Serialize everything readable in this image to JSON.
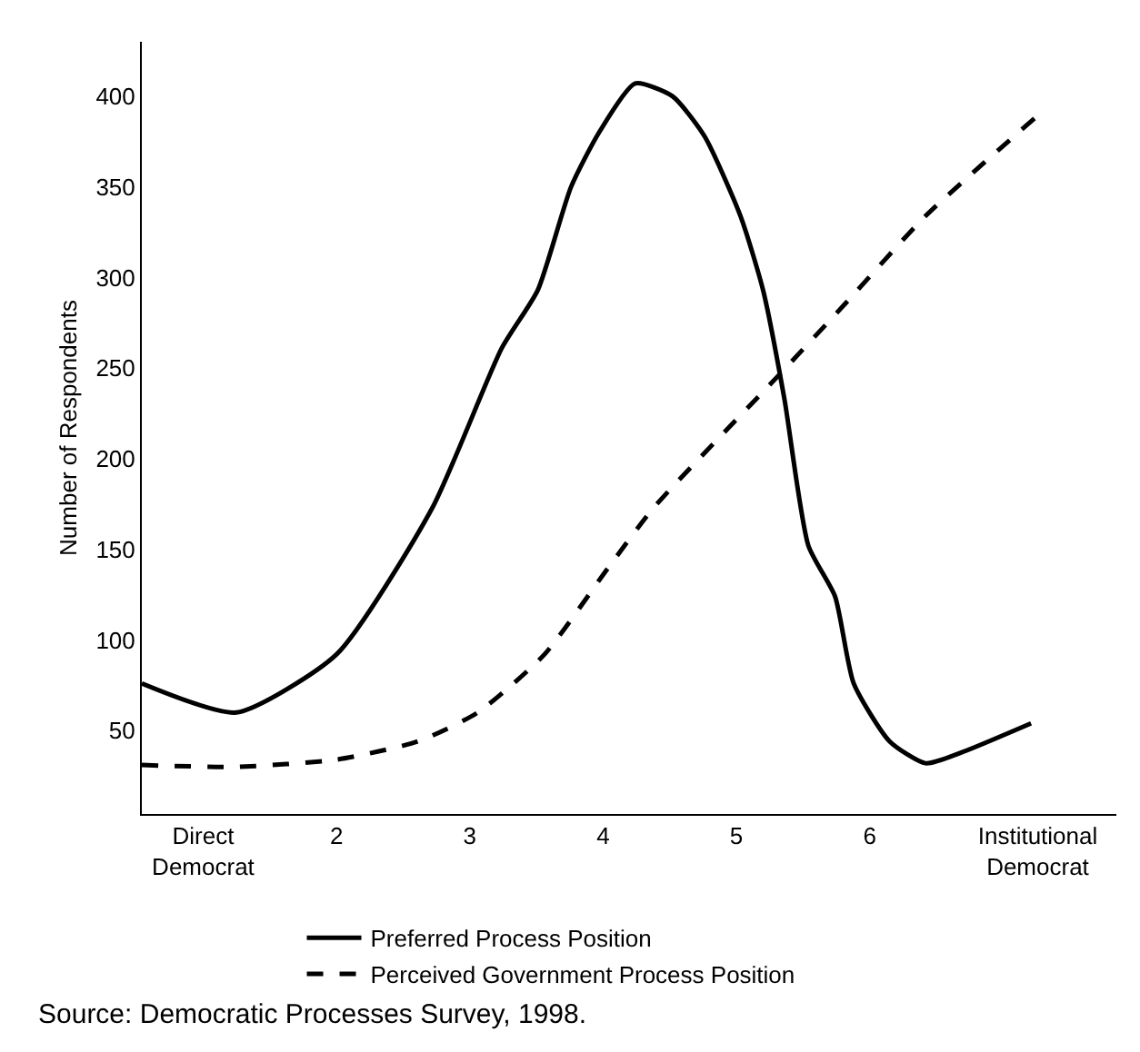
{
  "chart_data": {
    "type": "line",
    "ylabel": "Number of Respondents",
    "xlim": [
      0.54,
      7.85
    ],
    "xticks": [
      {
        "value": 1,
        "label": "Direct\nDemocrat"
      },
      2,
      3,
      4,
      5,
      6,
      {
        "value": 7.26,
        "label": "Institutional\nDemocrat"
      }
    ],
    "ylim": [
      4,
      430
    ],
    "yticks": [
      50,
      100,
      150,
      200,
      250,
      300,
      350,
      400
    ],
    "series": [
      {
        "name": "Preferred Process Position",
        "color": "#000000",
        "line_style": "solid",
        "x": [
          0.54,
          1.25,
          2,
          2.72,
          3.24,
          3.51,
          3.76,
          3.97,
          4.24,
          4.52,
          4.76,
          5.03,
          5.2,
          5.36,
          5.54,
          5.74,
          5.88,
          6.15,
          6.42,
          6.69,
          7.21
        ],
        "values": [
          76,
          60,
          92,
          173,
          261,
          293,
          350,
          380,
          407,
          400,
          378,
          334,
          293,
          233,
          152,
          124,
          76,
          44,
          32,
          38,
          54
        ]
      },
      {
        "name": "Perceived Government Process Position",
        "color": "#000000",
        "line_style": "dashed",
        "x": [
          0.54,
          1.25,
          2,
          2.61,
          3.06,
          3.56,
          4.04,
          4.38,
          5.33,
          5.81,
          6.42,
          7.24
        ],
        "values": [
          31,
          30,
          34,
          44,
          60,
          92,
          140,
          173,
          247,
          285,
          334,
          388
        ]
      }
    ],
    "grid": false,
    "legend": "bottom",
    "marker": "none",
    "annotations": [
      "Source: Democratic Processes Survey, 1998."
    ]
  }
}
